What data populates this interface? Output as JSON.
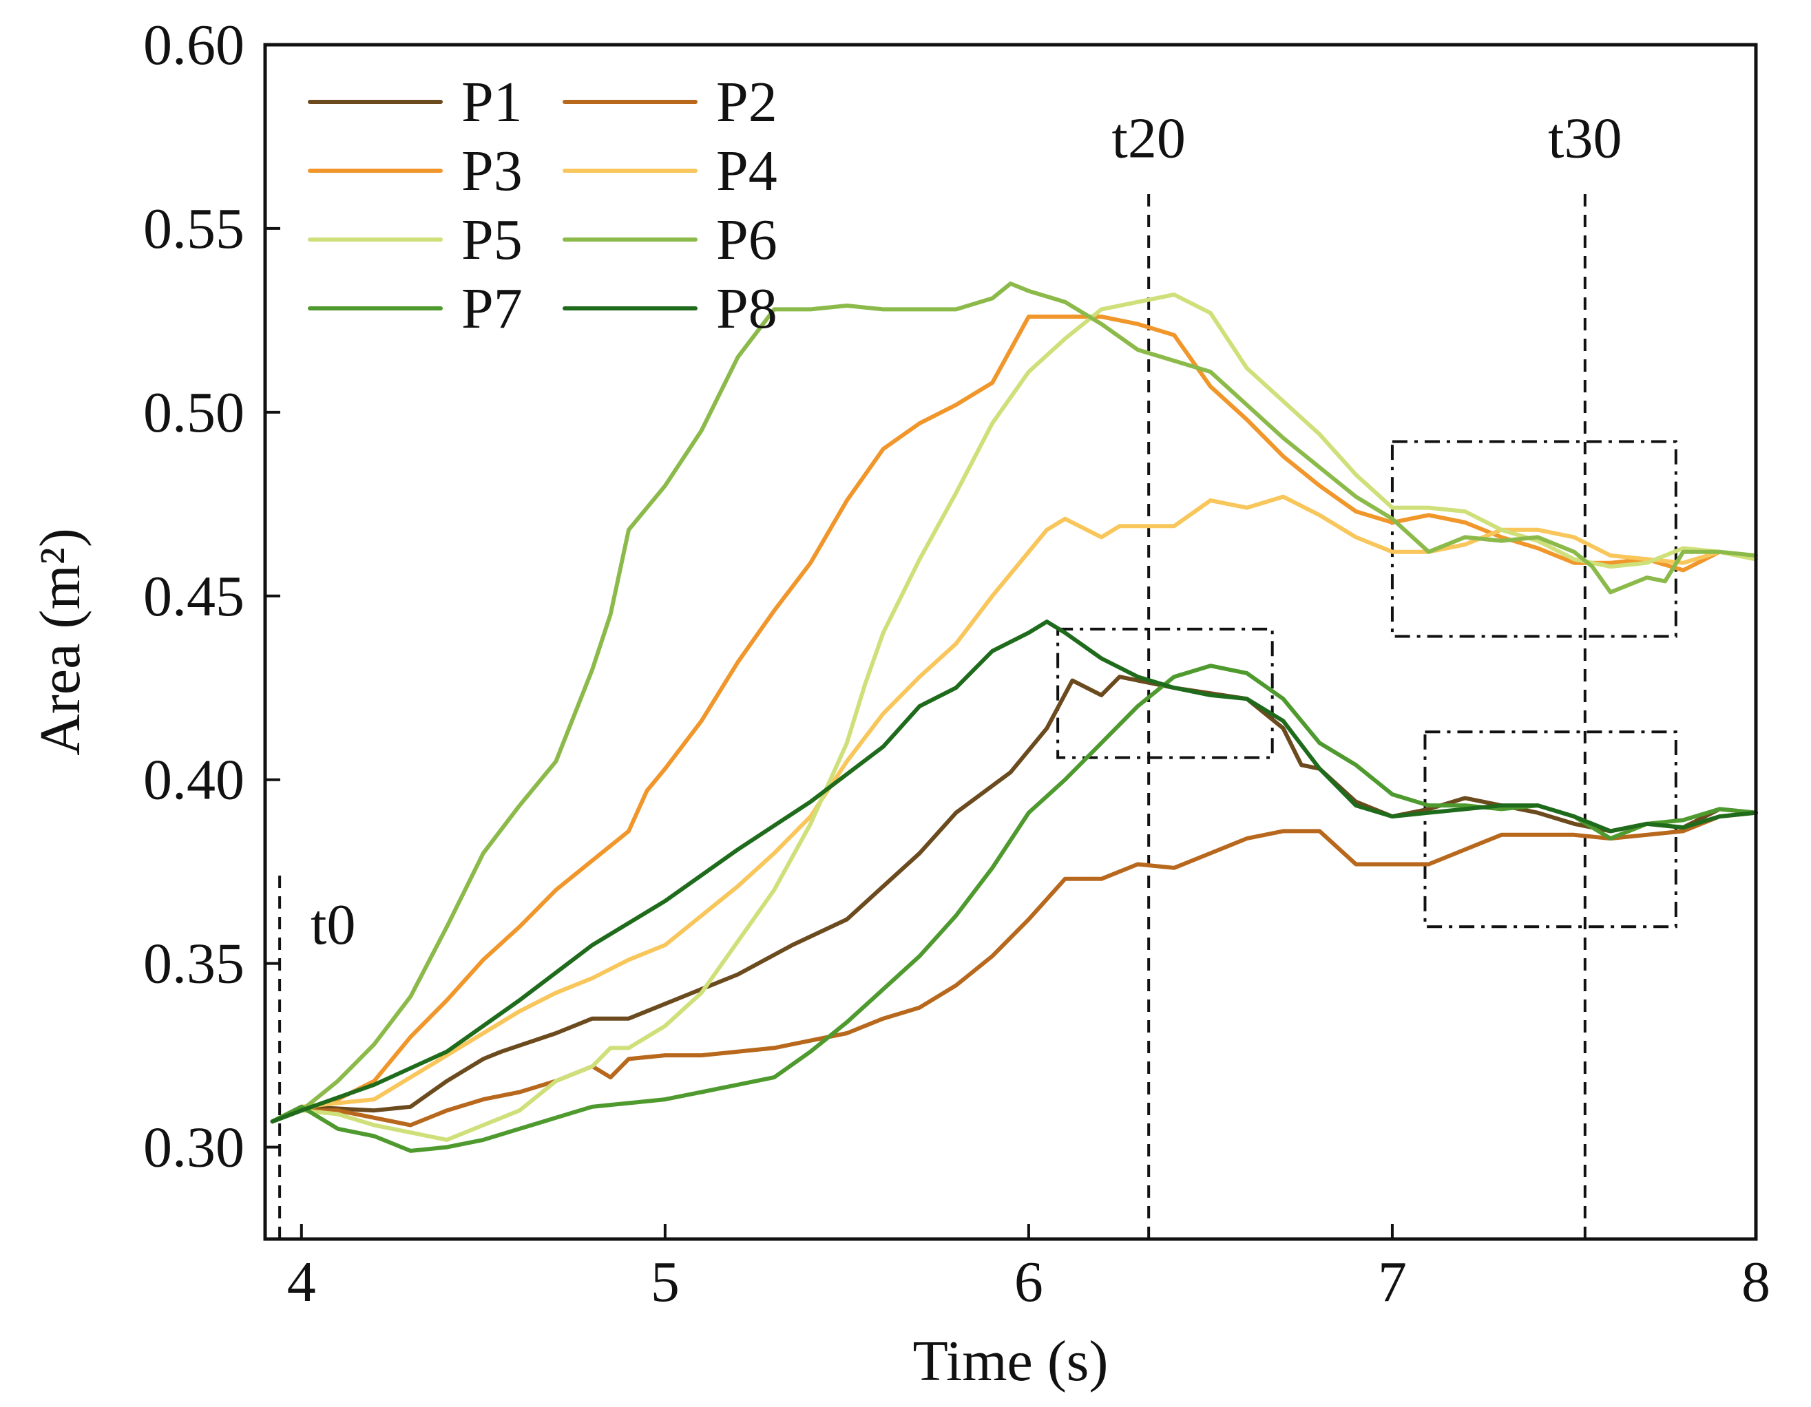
{
  "chart_data": {
    "type": "line",
    "xlabel": "Time (s)",
    "ylabel": "Area (m²)",
    "xlim": [
      3.9,
      8.0
    ],
    "ylim": [
      0.275,
      0.6
    ],
    "xticks": [
      "4",
      "5",
      "6",
      "7",
      "8"
    ],
    "xtick_values": [
      4,
      5,
      6,
      7,
      8
    ],
    "yticks": [
      "0.30",
      "0.35",
      "0.40",
      "0.45",
      "0.50",
      "0.55",
      "0.60"
    ],
    "ytick_values": [
      0.3,
      0.35,
      0.4,
      0.45,
      0.5,
      0.55,
      0.6
    ],
    "grid": false,
    "legend_position": "top-left",
    "vertical_markers": [
      {
        "label": "t0",
        "x": 3.94,
        "y_top": 0.376
      },
      {
        "label": "t20",
        "x": 6.33,
        "y_top": 0.56
      },
      {
        "label": "t30",
        "x": 7.53,
        "y_top": 0.56
      }
    ],
    "highlight_boxes": [
      {
        "x0": 6.08,
        "x1": 6.67,
        "y0": 0.406,
        "y1": 0.441
      },
      {
        "x0": 7.0,
        "x1": 7.78,
        "y0": 0.439,
        "y1": 0.492
      },
      {
        "x0": 7.09,
        "x1": 7.78,
        "y0": 0.36,
        "y1": 0.413
      }
    ],
    "series": [
      {
        "name": "P1",
        "color": "#6b4a1e",
        "x": [
          3.92,
          4.0,
          4.2,
          4.3,
          4.4,
          4.5,
          4.55,
          4.7,
          4.8,
          4.9,
          5.0,
          5.2,
          5.35,
          5.5,
          5.6,
          5.7,
          5.8,
          5.95,
          6.05,
          6.12,
          6.2,
          6.25,
          6.4,
          6.6,
          6.7,
          6.75,
          6.8,
          6.9,
          7.0,
          7.1,
          7.2,
          7.3,
          7.4,
          7.5,
          7.6,
          7.7,
          7.8,
          7.9,
          8.0
        ],
        "y": [
          0.307,
          0.311,
          0.31,
          0.311,
          0.318,
          0.324,
          0.326,
          0.331,
          0.335,
          0.335,
          0.339,
          0.347,
          0.355,
          0.362,
          0.371,
          0.38,
          0.391,
          0.402,
          0.414,
          0.427,
          0.423,
          0.428,
          0.425,
          0.422,
          0.414,
          0.404,
          0.403,
          0.394,
          0.39,
          0.392,
          0.395,
          0.393,
          0.391,
          0.388,
          0.386,
          0.388,
          0.387,
          0.392,
          0.391
        ]
      },
      {
        "name": "P2",
        "color": "#b8681c",
        "x": [
          3.92,
          4.0,
          4.1,
          4.2,
          4.3,
          4.4,
          4.5,
          4.6,
          4.7,
          4.8,
          4.85,
          4.9,
          5.0,
          5.1,
          5.3,
          5.5,
          5.6,
          5.7,
          5.8,
          5.9,
          6.0,
          6.1,
          6.2,
          6.3,
          6.4,
          6.5,
          6.6,
          6.7,
          6.8,
          6.9,
          7.0,
          7.1,
          7.2,
          7.3,
          7.4,
          7.5,
          7.6,
          7.7,
          7.8,
          7.9,
          8.0
        ],
        "y": [
          0.307,
          0.31,
          0.31,
          0.308,
          0.306,
          0.31,
          0.313,
          0.315,
          0.318,
          0.322,
          0.319,
          0.324,
          0.325,
          0.325,
          0.327,
          0.331,
          0.335,
          0.338,
          0.344,
          0.352,
          0.362,
          0.373,
          0.373,
          0.377,
          0.376,
          0.38,
          0.384,
          0.386,
          0.386,
          0.377,
          0.377,
          0.377,
          0.381,
          0.385,
          0.385,
          0.385,
          0.384,
          0.385,
          0.386,
          0.39,
          0.391
        ]
      },
      {
        "name": "P3",
        "color": "#f0962a",
        "x": [
          3.92,
          4.0,
          4.1,
          4.2,
          4.3,
          4.4,
          4.5,
          4.6,
          4.7,
          4.8,
          4.9,
          4.95,
          5.0,
          5.1,
          5.2,
          5.3,
          5.4,
          5.5,
          5.6,
          5.7,
          5.8,
          5.9,
          6.0,
          6.1,
          6.2,
          6.3,
          6.4,
          6.5,
          6.6,
          6.7,
          6.8,
          6.9,
          7.0,
          7.1,
          7.2,
          7.3,
          7.4,
          7.5,
          7.6,
          7.7,
          7.8,
          7.9,
          8.0
        ],
        "y": [
          0.307,
          0.31,
          0.313,
          0.318,
          0.33,
          0.34,
          0.351,
          0.36,
          0.37,
          0.378,
          0.386,
          0.397,
          0.403,
          0.416,
          0.432,
          0.446,
          0.459,
          0.476,
          0.49,
          0.497,
          0.502,
          0.508,
          0.526,
          0.526,
          0.526,
          0.524,
          0.521,
          0.507,
          0.498,
          0.488,
          0.48,
          0.473,
          0.47,
          0.472,
          0.47,
          0.466,
          0.463,
          0.459,
          0.459,
          0.46,
          0.457,
          0.462,
          0.46
        ]
      },
      {
        "name": "P4",
        "color": "#f8c65a",
        "x": [
          3.92,
          4.0,
          4.1,
          4.2,
          4.3,
          4.4,
          4.5,
          4.6,
          4.7,
          4.8,
          4.9,
          5.0,
          5.1,
          5.2,
          5.3,
          5.4,
          5.5,
          5.6,
          5.7,
          5.8,
          5.9,
          6.0,
          6.05,
          6.1,
          6.2,
          6.25,
          6.3,
          6.4,
          6.5,
          6.6,
          6.7,
          6.8,
          6.9,
          7.0,
          7.1,
          7.2,
          7.3,
          7.4,
          7.5,
          7.6,
          7.7,
          7.8,
          7.9,
          8.0
        ],
        "y": [
          0.307,
          0.311,
          0.312,
          0.313,
          0.319,
          0.325,
          0.331,
          0.337,
          0.342,
          0.346,
          0.351,
          0.355,
          0.363,
          0.371,
          0.38,
          0.39,
          0.405,
          0.418,
          0.428,
          0.437,
          0.45,
          0.462,
          0.468,
          0.471,
          0.466,
          0.469,
          0.469,
          0.469,
          0.476,
          0.474,
          0.477,
          0.472,
          0.466,
          0.462,
          0.462,
          0.464,
          0.468,
          0.468,
          0.466,
          0.461,
          0.46,
          0.459,
          0.462,
          0.46
        ]
      },
      {
        "name": "P5",
        "color": "#cfe07a",
        "x": [
          3.92,
          4.0,
          4.1,
          4.2,
          4.3,
          4.4,
          4.5,
          4.6,
          4.7,
          4.8,
          4.85,
          4.9,
          5.0,
          5.1,
          5.2,
          5.3,
          5.4,
          5.5,
          5.55,
          5.6,
          5.7,
          5.8,
          5.9,
          6.0,
          6.1,
          6.2,
          6.3,
          6.4,
          6.5,
          6.6,
          6.7,
          6.8,
          6.9,
          7.0,
          7.1,
          7.2,
          7.3,
          7.4,
          7.5,
          7.6,
          7.7,
          7.8,
          7.9,
          8.0
        ],
        "y": [
          0.307,
          0.31,
          0.309,
          0.306,
          0.304,
          0.302,
          0.306,
          0.31,
          0.318,
          0.322,
          0.327,
          0.327,
          0.333,
          0.342,
          0.356,
          0.37,
          0.388,
          0.41,
          0.426,
          0.44,
          0.46,
          0.478,
          0.497,
          0.511,
          0.52,
          0.528,
          0.53,
          0.532,
          0.527,
          0.512,
          0.503,
          0.494,
          0.483,
          0.474,
          0.474,
          0.473,
          0.468,
          0.465,
          0.46,
          0.458,
          0.459,
          0.463,
          0.462,
          0.46
        ]
      },
      {
        "name": "P6",
        "color": "#8cba4a",
        "x": [
          3.92,
          4.0,
          4.1,
          4.2,
          4.3,
          4.4,
          4.5,
          4.6,
          4.7,
          4.8,
          4.85,
          4.9,
          5.0,
          5.1,
          5.2,
          5.3,
          5.4,
          5.5,
          5.6,
          5.7,
          5.8,
          5.9,
          5.95,
          6.0,
          6.1,
          6.2,
          6.3,
          6.4,
          6.5,
          6.6,
          6.7,
          6.8,
          6.9,
          7.0,
          7.1,
          7.2,
          7.3,
          7.4,
          7.5,
          7.55,
          7.6,
          7.7,
          7.75,
          7.8,
          7.9,
          8.0
        ],
        "y": [
          0.307,
          0.31,
          0.318,
          0.328,
          0.341,
          0.36,
          0.38,
          0.393,
          0.405,
          0.43,
          0.445,
          0.468,
          0.48,
          0.495,
          0.515,
          0.528,
          0.528,
          0.529,
          0.528,
          0.528,
          0.528,
          0.531,
          0.535,
          0.533,
          0.53,
          0.524,
          0.517,
          0.514,
          0.511,
          0.502,
          0.493,
          0.485,
          0.477,
          0.471,
          0.462,
          0.466,
          0.465,
          0.466,
          0.462,
          0.458,
          0.451,
          0.455,
          0.454,
          0.462,
          0.462,
          0.461
        ]
      },
      {
        "name": "P7",
        "color": "#4e9a2e",
        "x": [
          3.92,
          4.0,
          4.1,
          4.2,
          4.3,
          4.4,
          4.5,
          4.6,
          4.7,
          4.8,
          4.9,
          5.0,
          5.1,
          5.2,
          5.3,
          5.4,
          5.5,
          5.6,
          5.7,
          5.8,
          5.9,
          6.0,
          6.1,
          6.2,
          6.3,
          6.4,
          6.5,
          6.6,
          6.7,
          6.8,
          6.9,
          7.0,
          7.1,
          7.2,
          7.3,
          7.4,
          7.5,
          7.6,
          7.7,
          7.8,
          7.9,
          8.0
        ],
        "y": [
          0.307,
          0.311,
          0.305,
          0.303,
          0.299,
          0.3,
          0.302,
          0.305,
          0.308,
          0.311,
          0.312,
          0.313,
          0.315,
          0.317,
          0.319,
          0.326,
          0.334,
          0.343,
          0.352,
          0.363,
          0.376,
          0.391,
          0.4,
          0.41,
          0.42,
          0.428,
          0.431,
          0.429,
          0.422,
          0.41,
          0.404,
          0.396,
          0.393,
          0.393,
          0.392,
          0.393,
          0.39,
          0.384,
          0.388,
          0.389,
          0.392,
          0.391
        ]
      },
      {
        "name": "P8",
        "color": "#1f6b1c",
        "x": [
          3.92,
          4.0,
          4.2,
          4.4,
          4.6,
          4.8,
          5.0,
          5.2,
          5.4,
          5.6,
          5.7,
          5.8,
          5.9,
          6.0,
          6.05,
          6.1,
          6.2,
          6.3,
          6.4,
          6.5,
          6.6,
          6.7,
          6.8,
          6.9,
          7.0,
          7.1,
          7.2,
          7.3,
          7.4,
          7.5,
          7.6,
          7.7,
          7.8,
          7.9,
          8.0
        ],
        "y": [
          0.307,
          0.31,
          0.317,
          0.326,
          0.34,
          0.355,
          0.367,
          0.381,
          0.394,
          0.409,
          0.42,
          0.425,
          0.435,
          0.44,
          0.443,
          0.44,
          0.433,
          0.428,
          0.425,
          0.423,
          0.422,
          0.416,
          0.403,
          0.393,
          0.39,
          0.391,
          0.392,
          0.393,
          0.393,
          0.39,
          0.386,
          0.388,
          0.387,
          0.39,
          0.391
        ]
      }
    ]
  }
}
